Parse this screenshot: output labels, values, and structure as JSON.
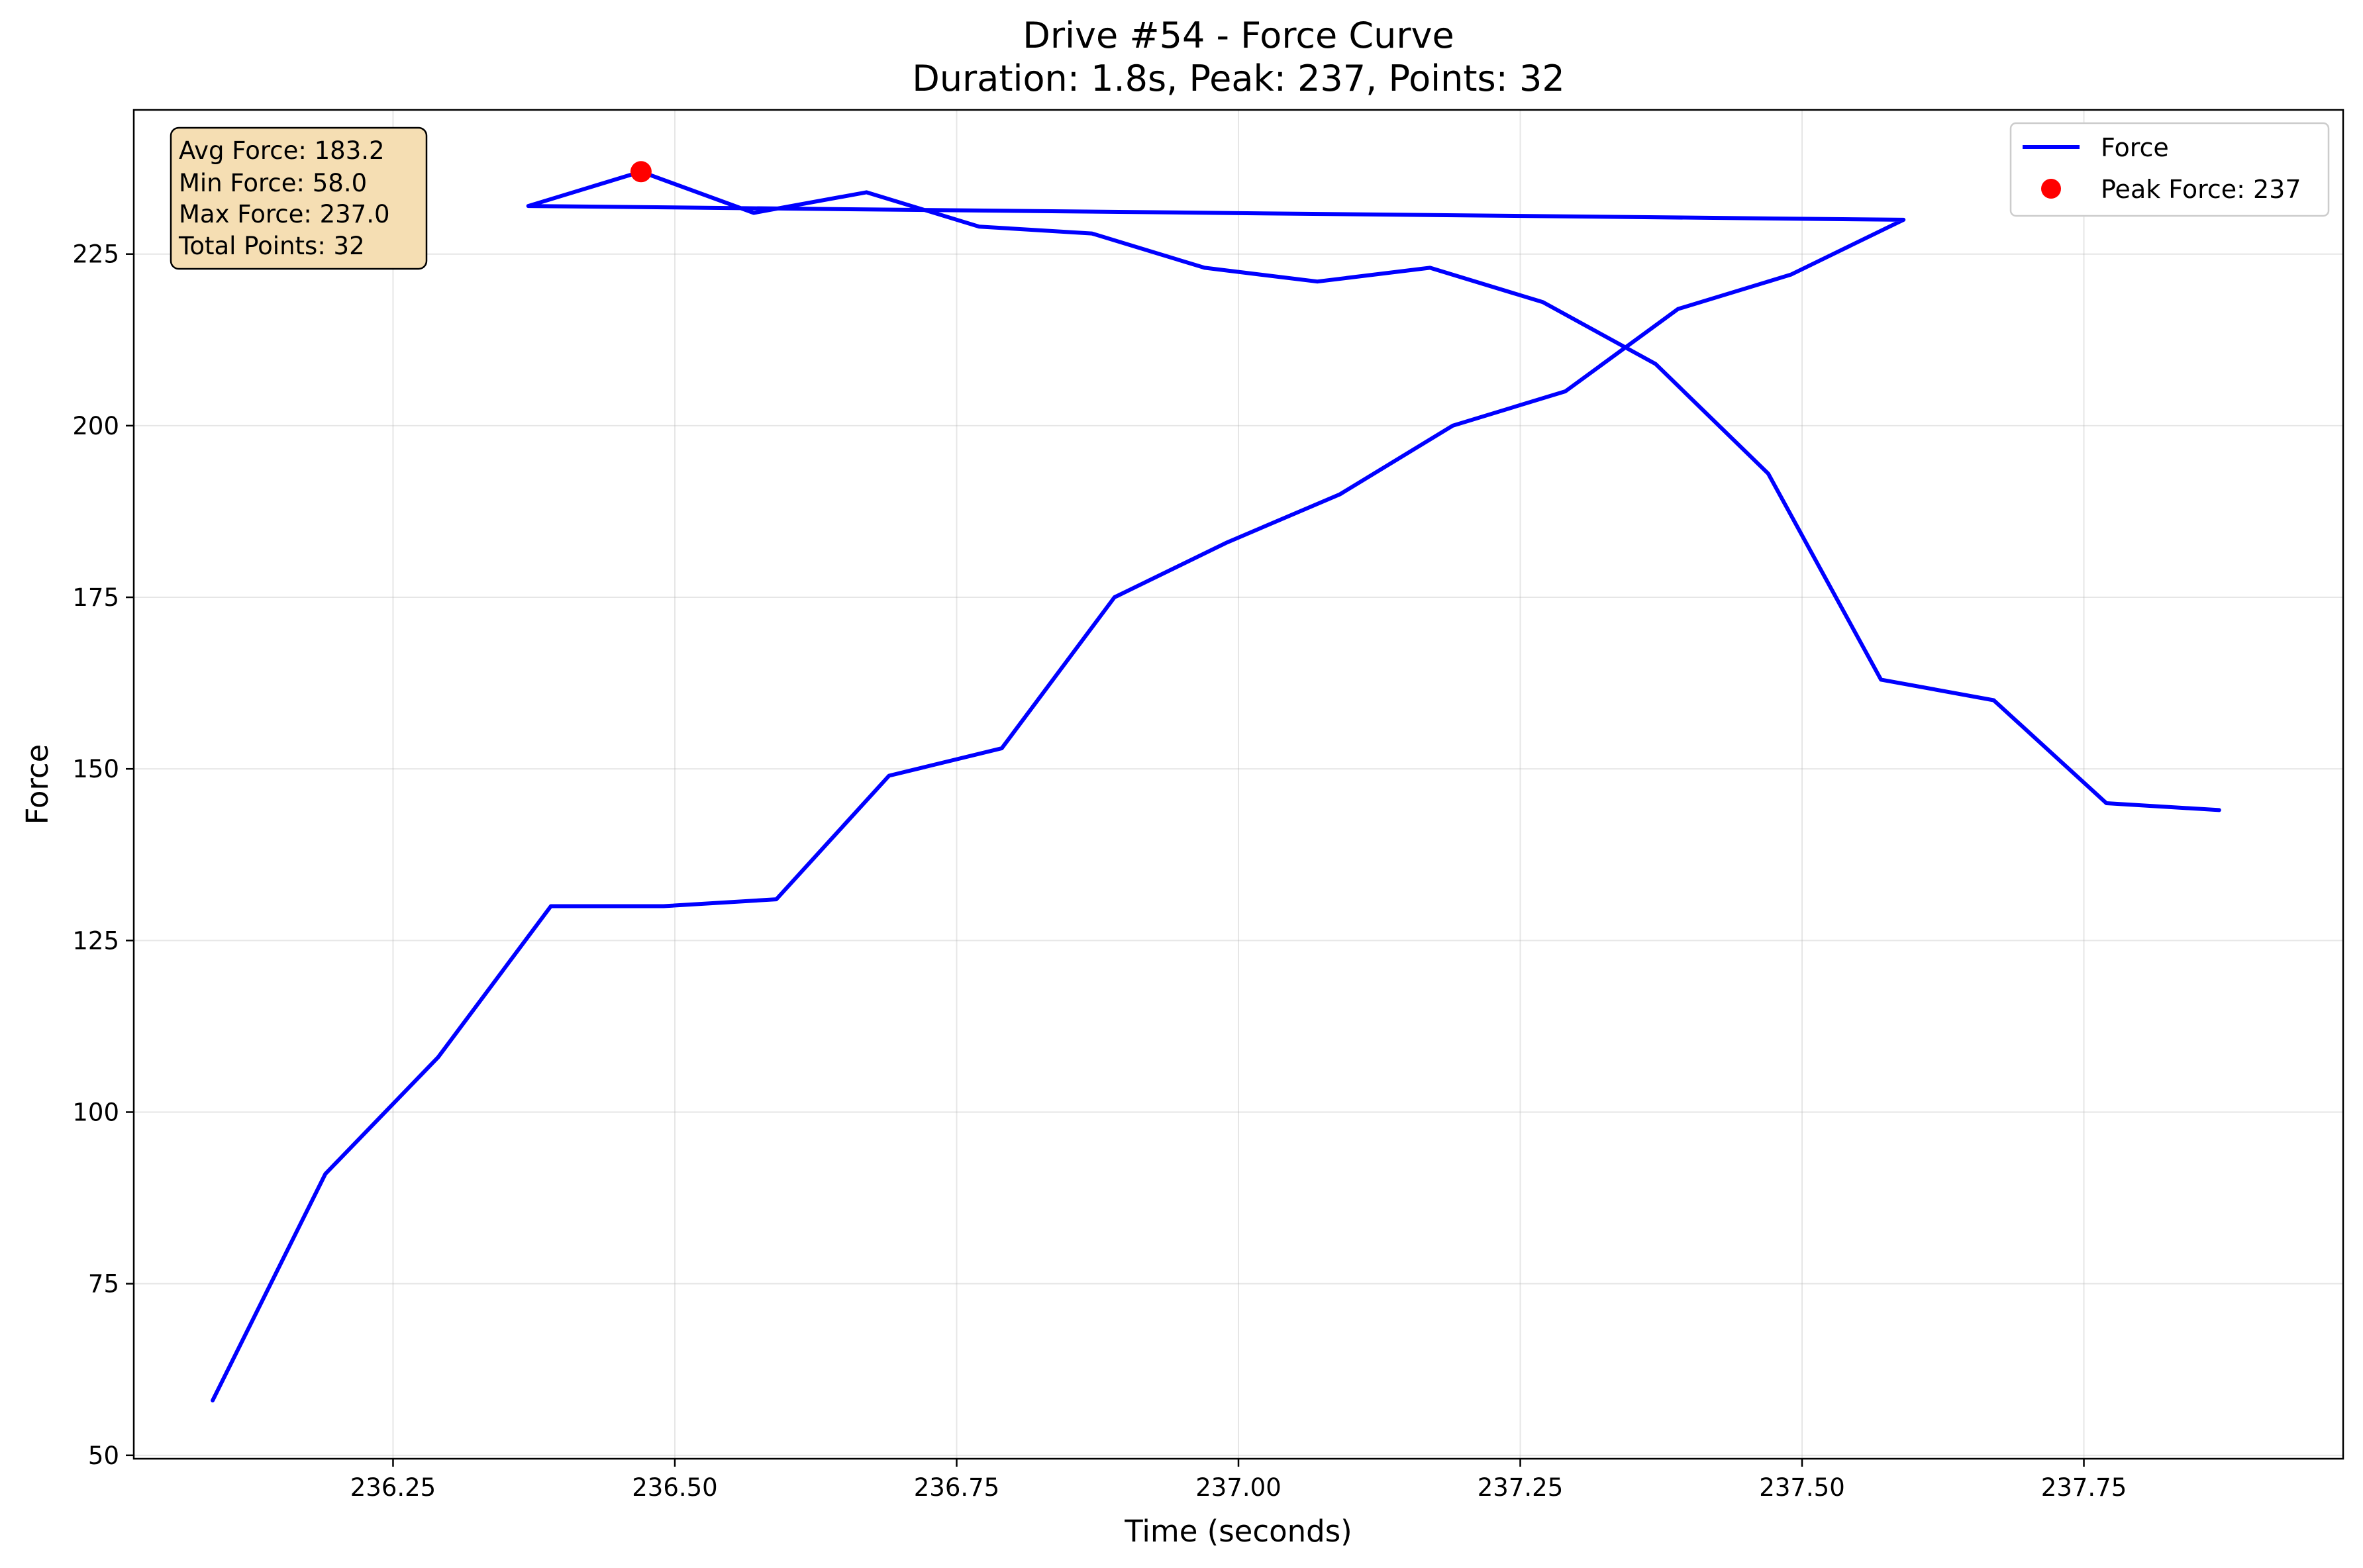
{
  "chart_data": {
    "type": "line",
    "title": "Drive #54 - Force Curve",
    "subtitle": "Duration: 1.8s, Peak: 237, Points: 32",
    "xlabel": "Time (seconds)",
    "ylabel": "Force",
    "xlim": [
      236.02,
      237.98
    ],
    "ylim": [
      49.5,
      246
    ],
    "xticks": [
      236.25,
      236.5,
      236.75,
      237.0,
      237.25,
      237.5,
      237.75
    ],
    "xtick_labels": [
      "236.25",
      "236.50",
      "236.75",
      "237.00",
      "237.25",
      "237.50",
      "237.75"
    ],
    "yticks": [
      50,
      75,
      100,
      125,
      150,
      175,
      200,
      225
    ],
    "ytick_labels": [
      "50",
      "75",
      "100",
      "125",
      "150",
      "175",
      "200",
      "225"
    ],
    "grid": true,
    "legend_position": "top-right",
    "series": [
      {
        "name": "Force",
        "color": "#0000ff",
        "x": [
          236.09,
          236.19,
          236.29,
          236.39,
          236.49,
          236.59,
          236.69,
          236.79,
          236.89,
          236.99,
          237.09,
          237.19,
          237.29,
          237.39,
          237.49,
          237.59,
          236.37,
          236.47,
          236.57,
          236.67,
          236.77,
          236.87,
          236.97,
          237.07,
          237.17,
          237.27,
          237.37,
          237.47,
          237.57,
          237.67,
          237.77,
          237.87
        ],
        "y": [
          58,
          91,
          108,
          130,
          130,
          131,
          149,
          153,
          175,
          183,
          190,
          200,
          205,
          217,
          222,
          230,
          232,
          237,
          231,
          234,
          229,
          228,
          223,
          221,
          223,
          218,
          209,
          193,
          163,
          160,
          145,
          144
        ]
      },
      {
        "name": "Peak Force: 237",
        "color": "#ff0000",
        "marker": "circle",
        "x": [
          236.47
        ],
        "y": [
          237
        ]
      }
    ],
    "stats_box": {
      "lines": [
        "Avg Force: 183.2",
        "Min Force: 58.0",
        "Max Force: 237.0",
        "Total Points: 32"
      ],
      "background": "#f5deb3"
    }
  }
}
